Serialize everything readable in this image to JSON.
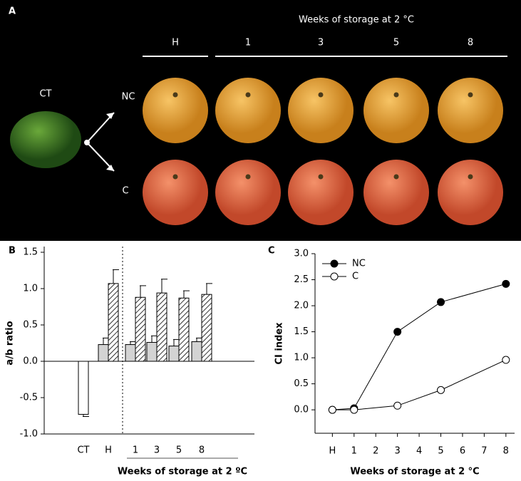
{
  "panel_a": {
    "label": "A",
    "title": "Weeks of storage at 2 °C",
    "columns": [
      "H",
      "1",
      "3",
      "5",
      "8"
    ],
    "rows": [
      "NC",
      "C"
    ],
    "control": "CT"
  },
  "chart_data": [
    {
      "type": "bar",
      "panel": "B",
      "ylabel": "a/b ratio",
      "xlabel": "Weeks of storage at 2 ºC",
      "categories": [
        "CT",
        "H",
        "1",
        "3",
        "5",
        "8"
      ],
      "series": [
        {
          "color": "#ffffff",
          "hatch": false,
          "values": [
            -0.73,
            null,
            null,
            null,
            null,
            null
          ],
          "errors": [
            0.03,
            null,
            null,
            null,
            null,
            null
          ]
        },
        {
          "color": "#d3d3d3",
          "hatch": false,
          "values": [
            null,
            0.23,
            0.23,
            0.26,
            0.21,
            0.27
          ],
          "errors": [
            null,
            0.09,
            0.04,
            0.09,
            0.09,
            0.05
          ]
        },
        {
          "color": "#ffffff",
          "hatch": true,
          "values": [
            null,
            1.07,
            0.88,
            0.94,
            0.87,
            0.92
          ],
          "errors": [
            null,
            0.19,
            0.16,
            0.19,
            0.1,
            0.15
          ]
        }
      ],
      "ylim": [
        -1.0,
        1.5
      ],
      "yticks": [
        {
          "value": -1.0,
          "label": "-1.0"
        },
        -0.5,
        {
          "value": 0.0,
          "label": "0.0"
        },
        0.5,
        {
          "value": 1.0,
          "label": "1.0"
        },
        1.5
      ]
    },
    {
      "type": "line",
      "panel": "C",
      "ylabel": "CI index",
      "xlabel": "Weeks of storage at 2 °C",
      "legend": "upper-left",
      "x": [
        0,
        1,
        3,
        5,
        8
      ],
      "series": [
        {
          "name": "NC",
          "color": "#000000",
          "values": [
            0,
            0.03,
            1.5,
            2.07,
            2.42
          ]
        },
        {
          "name": "C",
          "color": "#ffffff",
          "values": [
            0,
            0,
            0.08,
            0.38,
            0.96
          ]
        }
      ],
      "xlim": [
        -0.8,
        8.4
      ],
      "xticks": [
        {
          "value": 0,
          "label": "H"
        },
        1,
        2,
        3,
        4,
        5,
        6,
        7,
        8
      ],
      "ylim": [
        -0.45,
        3.0
      ],
      "yticks": [
        {
          "value": 0.0,
          "label": "0.0"
        },
        0.5,
        {
          "value": 1.0,
          "label": "1.0"
        },
        1.5,
        {
          "value": 2.0,
          "label": "2.0"
        },
        2.5,
        {
          "value": 3.0,
          "label": "3.0"
        }
      ]
    }
  ]
}
